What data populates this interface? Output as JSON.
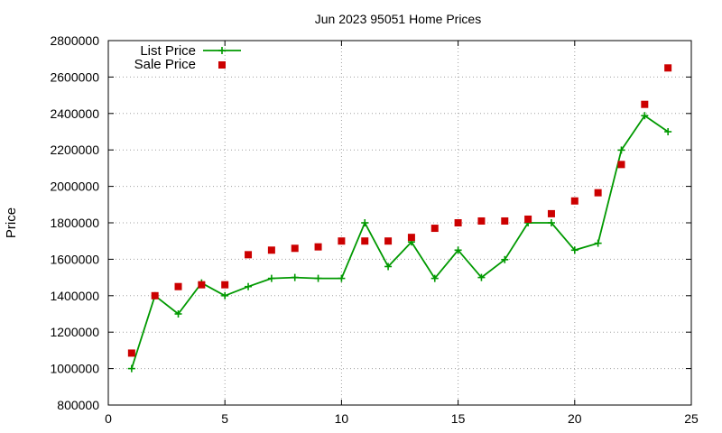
{
  "chart_data": {
    "type": "line",
    "title": "Jun 2023 95051 Home Prices",
    "xlabel": "",
    "ylabel": "Price",
    "xlim": [
      0,
      25
    ],
    "ylim": [
      800000,
      2800000
    ],
    "x_ticks": [
      0,
      5,
      10,
      15,
      20,
      25
    ],
    "y_ticks": [
      800000,
      1000000,
      1200000,
      1400000,
      1600000,
      1800000,
      2000000,
      2200000,
      2400000,
      2600000,
      2800000
    ],
    "grid": true,
    "legend_position": "top-left",
    "series": [
      {
        "name": "List Price",
        "style": "lines+crosses",
        "color": "#009900",
        "x": [
          1,
          2,
          3,
          4,
          5,
          6,
          7,
          8,
          9,
          10,
          11,
          12,
          13,
          14,
          15,
          16,
          17,
          18,
          19,
          20,
          21,
          22,
          23,
          24
        ],
        "values": [
          1000000,
          1400000,
          1300000,
          1470000,
          1400000,
          1450000,
          1495000,
          1500000,
          1495000,
          1495000,
          1800000,
          1560000,
          1695000,
          1495000,
          1650000,
          1500000,
          1598000,
          1800000,
          1800000,
          1650000,
          1688000,
          2199000,
          2388000,
          2300000
        ]
      },
      {
        "name": "Sale Price",
        "style": "squares",
        "color": "#cc0000",
        "x": [
          1,
          2,
          3,
          4,
          5,
          6,
          7,
          8,
          9,
          10,
          11,
          12,
          13,
          14,
          15,
          16,
          17,
          18,
          19,
          20,
          21,
          22,
          23,
          24
        ],
        "values": [
          1085000,
          1400000,
          1450000,
          1460000,
          1460000,
          1625000,
          1650000,
          1660000,
          1668000,
          1700000,
          1700000,
          1700000,
          1720000,
          1770000,
          1800000,
          1810000,
          1810000,
          1820000,
          1850000,
          1920000,
          1965000,
          2120000,
          2450000,
          2650000
        ]
      }
    ]
  }
}
